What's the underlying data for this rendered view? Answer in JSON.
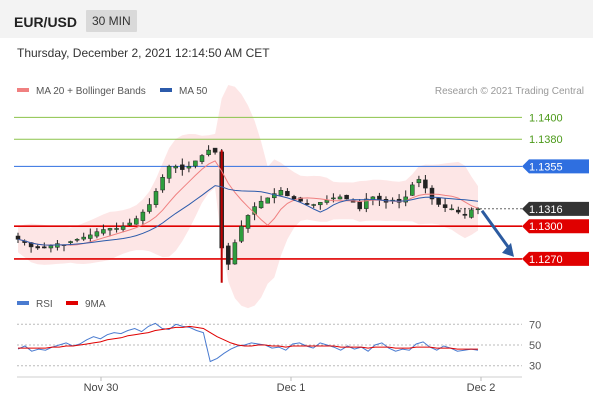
{
  "header": {
    "symbol": "EUR/USD",
    "timeframe": "30 MIN",
    "datetime": "Thursday, December 2, 2021 12:14:50 AM CET"
  },
  "legend": {
    "ma20_label": "MA 20 + Bollinger Bands",
    "ma50_label": "MA 50",
    "credit": "Research © 2021 Trading Central"
  },
  "colors": {
    "ma20": "#f08080",
    "ma50": "#2c5bab",
    "band_fill": "#fde2e2",
    "resistance": "#8bc34a",
    "pivot": "#2f6fe0",
    "support": "#e00000",
    "last_price": "#333333",
    "arrow": "#2c5ba0",
    "rsi": "#4a7bd0",
    "rsi_ma": "#e00000"
  },
  "price_levels": [
    {
      "label": "1.1400",
      "value": 1.14,
      "kind": "resistance"
    },
    {
      "label": "1.1380",
      "value": 1.138,
      "kind": "resistance"
    },
    {
      "label": "1.1355",
      "value": 1.1355,
      "kind": "pivot"
    },
    {
      "label": "1.1316",
      "value": 1.1316,
      "kind": "last"
    },
    {
      "label": "1.1300",
      "value": 1.13,
      "kind": "support"
    },
    {
      "label": "1.1270",
      "value": 1.127,
      "kind": "support"
    }
  ],
  "rsi_legend": {
    "rsi_label": "RSI",
    "ma_label": "9MA"
  },
  "rsi_ticks": [
    "70",
    "50",
    "30"
  ],
  "x_ticks": [
    "Nov 30",
    "Dec 1",
    "Dec 2"
  ],
  "chart_data": [
    {
      "type": "candlestick",
      "title": "EUR/USD 30 MIN",
      "ylim": [
        1.1246,
        1.1416
      ],
      "x_ticks": [
        "Nov 30",
        "Dec 1",
        "Dec 2"
      ],
      "series": [
        {
          "name": "MA 20 + Bollinger Bands"
        },
        {
          "name": "MA 50"
        }
      ],
      "approx_close_path": [
        1.1288,
        1.1285,
        1.1281,
        1.128,
        1.128,
        1.1282,
        1.1284,
        1.1283,
        1.1286,
        1.1288,
        1.129,
        1.1292,
        1.1295,
        1.1297,
        1.1298,
        1.1298,
        1.13,
        1.1303,
        1.1307,
        1.1313,
        1.132,
        1.1332,
        1.1345,
        1.1355,
        1.1355,
        1.1352,
        1.1355,
        1.136,
        1.1365,
        1.137,
        1.1368,
        1.128,
        1.1265,
        1.1285,
        1.13,
        1.131,
        1.1318,
        1.1323,
        1.1326,
        1.133,
        1.1333,
        1.1328,
        1.1325,
        1.1323,
        1.132,
        1.132,
        1.1322,
        1.1324,
        1.1326,
        1.1327,
        1.1325,
        1.1322,
        1.1316,
        1.1325,
        1.1327,
        1.1324,
        1.1322,
        1.1324,
        1.1322,
        1.1327,
        1.1338,
        1.1343,
        1.1335,
        1.1325,
        1.132,
        1.1317,
        1.1316,
        1.1313,
        1.131,
        1.1315,
        1.1316
      ],
      "price_levels": [
        1.14,
        1.138,
        1.1355,
        1.1316,
        1.13,
        1.127
      ]
    },
    {
      "type": "line",
      "title": "RSI",
      "ylim": [
        20,
        80
      ],
      "y_ticks": [
        70,
        50,
        30
      ],
      "series": [
        {
          "name": "RSI",
          "values": [
            46,
            49,
            44,
            46,
            45,
            48,
            50,
            52,
            49,
            51,
            55,
            58,
            56,
            60,
            62,
            61,
            64,
            66,
            63,
            68,
            71,
            66,
            65,
            70,
            68,
            67,
            64,
            62,
            34,
            37,
            42,
            46,
            49,
            50,
            52,
            51,
            50,
            47,
            48,
            45,
            51,
            52,
            49,
            47,
            52,
            50,
            48,
            45,
            49,
            46,
            48,
            44,
            50,
            52,
            47,
            44,
            46,
            45,
            51,
            53,
            48,
            45,
            49,
            47,
            44,
            45,
            46,
            45
          ]
        },
        {
          "name": "9MA",
          "values": [
            47,
            47,
            47,
            47,
            47,
            48,
            48,
            49,
            49,
            50,
            51,
            52,
            53,
            55,
            56,
            57,
            59,
            60,
            61,
            62,
            64,
            65,
            66,
            67,
            67,
            68,
            67,
            66,
            62,
            58,
            55,
            52,
            50,
            49,
            49,
            50,
            50,
            49,
            49,
            48,
            49,
            49,
            49,
            49,
            49,
            49,
            49,
            48,
            48,
            48,
            48,
            47,
            48,
            48,
            48,
            47,
            47,
            47,
            48,
            48,
            48,
            47,
            47,
            47,
            46,
            46,
            46,
            46
          ]
        }
      ]
    }
  ]
}
